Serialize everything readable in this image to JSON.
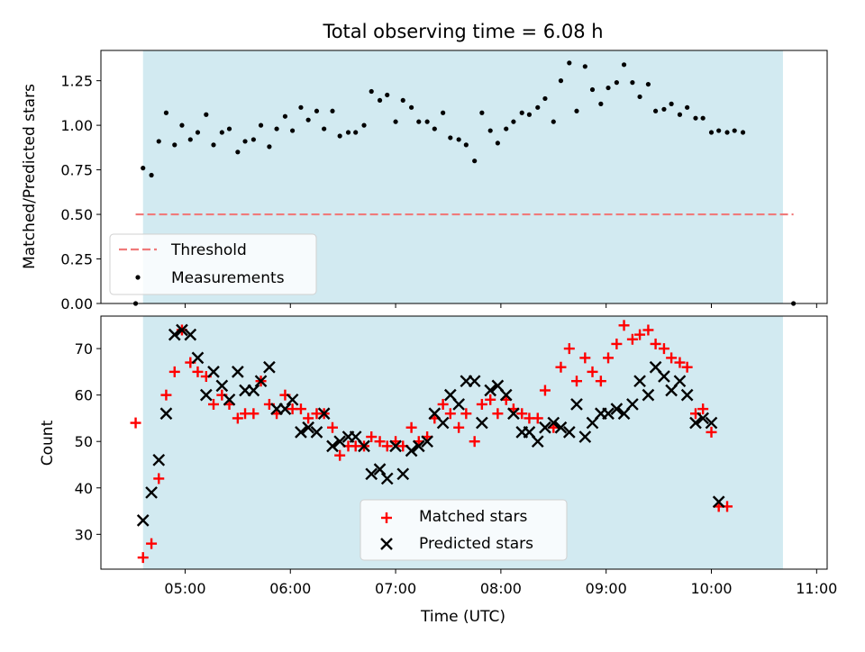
{
  "chart_data": [
    {
      "type": "scatter",
      "title": "Total observing time = 6.08 h",
      "ylabel": "Matched/Predicted stars",
      "xlabel": "",
      "xlim": [
        4.2,
        11.1
      ],
      "ylim": [
        0,
        1.42
      ],
      "yticks": [
        "0.00",
        "0.25",
        "0.50",
        "0.75",
        "1.00",
        "1.25"
      ],
      "ytick_values": [
        0,
        0.25,
        0.5,
        0.75,
        1.0,
        1.25
      ],
      "xtick_values": [
        5,
        6,
        7,
        8,
        9,
        10,
        11
      ],
      "observing_window": [
        4.6,
        10.68
      ],
      "threshold": {
        "name": "Threshold",
        "value": 0.5,
        "x_range": [
          4.53,
          10.78
        ],
        "color": "#f07a7a"
      },
      "series": [
        {
          "name": "Measurements",
          "color": "#000000",
          "points": [
            [
              4.53,
              0.0
            ],
            [
              4.6,
              0.76
            ],
            [
              4.68,
              0.72
            ],
            [
              4.75,
              0.91
            ],
            [
              4.82,
              1.07
            ],
            [
              4.9,
              0.89
            ],
            [
              4.97,
              1.0
            ],
            [
              5.05,
              0.92
            ],
            [
              5.12,
              0.96
            ],
            [
              5.2,
              1.06
            ],
            [
              5.27,
              0.89
            ],
            [
              5.35,
              0.96
            ],
            [
              5.42,
              0.98
            ],
            [
              5.5,
              0.85
            ],
            [
              5.57,
              0.91
            ],
            [
              5.65,
              0.92
            ],
            [
              5.72,
              1.0
            ],
            [
              5.8,
              0.88
            ],
            [
              5.87,
              0.98
            ],
            [
              5.95,
              1.05
            ],
            [
              6.02,
              0.97
            ],
            [
              6.1,
              1.1
            ],
            [
              6.17,
              1.03
            ],
            [
              6.25,
              1.08
            ],
            [
              6.32,
              0.98
            ],
            [
              6.4,
              1.08
            ],
            [
              6.47,
              0.94
            ],
            [
              6.55,
              0.96
            ],
            [
              6.62,
              0.96
            ],
            [
              6.7,
              1.0
            ],
            [
              6.77,
              1.19
            ],
            [
              6.85,
              1.14
            ],
            [
              6.92,
              1.17
            ],
            [
              7.0,
              1.02
            ],
            [
              7.07,
              1.14
            ],
            [
              7.15,
              1.1
            ],
            [
              7.22,
              1.02
            ],
            [
              7.3,
              1.02
            ],
            [
              7.37,
              0.98
            ],
            [
              7.45,
              1.07
            ],
            [
              7.52,
              0.93
            ],
            [
              7.6,
              0.92
            ],
            [
              7.67,
              0.89
            ],
            [
              7.75,
              0.8
            ],
            [
              7.82,
              1.07
            ],
            [
              7.9,
              0.97
            ],
            [
              7.97,
              0.9
            ],
            [
              8.05,
              0.98
            ],
            [
              8.12,
              1.02
            ],
            [
              8.2,
              1.07
            ],
            [
              8.27,
              1.06
            ],
            [
              8.35,
              1.1
            ],
            [
              8.42,
              1.15
            ],
            [
              8.5,
              1.02
            ],
            [
              8.57,
              1.25
            ],
            [
              8.65,
              1.35
            ],
            [
              8.72,
              1.08
            ],
            [
              8.8,
              1.33
            ],
            [
              8.87,
              1.2
            ],
            [
              8.95,
              1.12
            ],
            [
              9.02,
              1.21
            ],
            [
              9.1,
              1.24
            ],
            [
              9.17,
              1.34
            ],
            [
              9.25,
              1.24
            ],
            [
              9.32,
              1.16
            ],
            [
              9.4,
              1.23
            ],
            [
              9.47,
              1.08
            ],
            [
              9.55,
              1.09
            ],
            [
              9.62,
              1.12
            ],
            [
              9.7,
              1.06
            ],
            [
              9.77,
              1.1
            ],
            [
              9.85,
              1.04
            ],
            [
              9.92,
              1.04
            ],
            [
              10.0,
              0.96
            ],
            [
              10.07,
              0.97
            ],
            [
              10.15,
              0.96
            ],
            [
              10.22,
              0.97
            ],
            [
              10.3,
              0.96
            ],
            [
              10.78,
              0.0
            ]
          ]
        }
      ],
      "legend": {
        "placement": "lower-left",
        "entries": [
          "Threshold",
          "Measurements"
        ]
      }
    },
    {
      "type": "scatter",
      "title": "",
      "ylabel": "Count",
      "xlabel": "Time (UTC)",
      "xlim": [
        4.2,
        11.1
      ],
      "ylim": [
        22.5,
        77
      ],
      "yticks": [
        "30",
        "40",
        "50",
        "60",
        "70"
      ],
      "ytick_values": [
        30,
        40,
        50,
        60,
        70
      ],
      "xticks": [
        "05:00",
        "06:00",
        "07:00",
        "08:00",
        "09:00",
        "10:00",
        "11:00"
      ],
      "xtick_values": [
        5,
        6,
        7,
        8,
        9,
        10,
        11
      ],
      "observing_window": [
        4.6,
        10.68
      ],
      "series": [
        {
          "name": "Matched stars",
          "color": "#ff0000",
          "marker": "plus",
          "points": [
            [
              4.53,
              54
            ],
            [
              4.6,
              25
            ],
            [
              4.68,
              28
            ],
            [
              4.75,
              42
            ],
            [
              4.82,
              60
            ],
            [
              4.9,
              65
            ],
            [
              4.97,
              74
            ],
            [
              5.05,
              67
            ],
            [
              5.12,
              65
            ],
            [
              5.2,
              64
            ],
            [
              5.27,
              58
            ],
            [
              5.35,
              60
            ],
            [
              5.42,
              58
            ],
            [
              5.5,
              55
            ],
            [
              5.57,
              56
            ],
            [
              5.65,
              56
            ],
            [
              5.72,
              63
            ],
            [
              5.8,
              58
            ],
            [
              5.87,
              56
            ],
            [
              5.95,
              60
            ],
            [
              6.02,
              57
            ],
            [
              6.1,
              57
            ],
            [
              6.17,
              55
            ],
            [
              6.25,
              56
            ],
            [
              6.32,
              56
            ],
            [
              6.4,
              53
            ],
            [
              6.47,
              47
            ],
            [
              6.55,
              49
            ],
            [
              6.62,
              49
            ],
            [
              6.7,
              49
            ],
            [
              6.77,
              51
            ],
            [
              6.85,
              50
            ],
            [
              6.92,
              49
            ],
            [
              7.0,
              50
            ],
            [
              7.07,
              49
            ],
            [
              7.15,
              53
            ],
            [
              7.22,
              50
            ],
            [
              7.3,
              51
            ],
            [
              7.37,
              55
            ],
            [
              7.45,
              58
            ],
            [
              7.52,
              56
            ],
            [
              7.6,
              53
            ],
            [
              7.67,
              56
            ],
            [
              7.75,
              50
            ],
            [
              7.82,
              58
            ],
            [
              7.9,
              59
            ],
            [
              7.97,
              56
            ],
            [
              8.05,
              59
            ],
            [
              8.12,
              57
            ],
            [
              8.2,
              56
            ],
            [
              8.27,
              55
            ],
            [
              8.35,
              55
            ],
            [
              8.42,
              61
            ],
            [
              8.5,
              53
            ],
            [
              8.57,
              66
            ],
            [
              8.65,
              70
            ],
            [
              8.72,
              63
            ],
            [
              8.8,
              68
            ],
            [
              8.87,
              65
            ],
            [
              8.95,
              63
            ],
            [
              9.02,
              68
            ],
            [
              9.1,
              71
            ],
            [
              9.17,
              75
            ],
            [
              9.25,
              72
            ],
            [
              9.32,
              73
            ],
            [
              9.4,
              74
            ],
            [
              9.47,
              71
            ],
            [
              9.55,
              70
            ],
            [
              9.62,
              68
            ],
            [
              9.7,
              67
            ],
            [
              9.77,
              66
            ],
            [
              9.85,
              56
            ],
            [
              9.92,
              57
            ],
            [
              10.0,
              52
            ],
            [
              10.07,
              36
            ],
            [
              10.15,
              36
            ]
          ]
        },
        {
          "name": "Predicted stars",
          "color": "#000000",
          "marker": "x",
          "points": [
            [
              4.6,
              33
            ],
            [
              4.68,
              39
            ],
            [
              4.75,
              46
            ],
            [
              4.82,
              56
            ],
            [
              4.9,
              73
            ],
            [
              4.97,
              74
            ],
            [
              5.05,
              73
            ],
            [
              5.12,
              68
            ],
            [
              5.2,
              60
            ],
            [
              5.27,
              65
            ],
            [
              5.35,
              62
            ],
            [
              5.42,
              59
            ],
            [
              5.5,
              65
            ],
            [
              5.57,
              61
            ],
            [
              5.65,
              61
            ],
            [
              5.72,
              63
            ],
            [
              5.8,
              66
            ],
            [
              5.87,
              57
            ],
            [
              5.95,
              57
            ],
            [
              6.02,
              59
            ],
            [
              6.1,
              52
            ],
            [
              6.17,
              53
            ],
            [
              6.25,
              52
            ],
            [
              6.32,
              56
            ],
            [
              6.4,
              49
            ],
            [
              6.47,
              50
            ],
            [
              6.55,
              51
            ],
            [
              6.62,
              51
            ],
            [
              6.7,
              49
            ],
            [
              6.77,
              43
            ],
            [
              6.85,
              44
            ],
            [
              6.92,
              42
            ],
            [
              7.0,
              49
            ],
            [
              7.07,
              43
            ],
            [
              7.15,
              48
            ],
            [
              7.22,
              49
            ],
            [
              7.3,
              50
            ],
            [
              7.37,
              56
            ],
            [
              7.45,
              54
            ],
            [
              7.52,
              60
            ],
            [
              7.6,
              58
            ],
            [
              7.67,
              63
            ],
            [
              7.75,
              63
            ],
            [
              7.82,
              54
            ],
            [
              7.9,
              61
            ],
            [
              7.97,
              62
            ],
            [
              8.05,
              60
            ],
            [
              8.12,
              56
            ],
            [
              8.2,
              52
            ],
            [
              8.27,
              52
            ],
            [
              8.35,
              50
            ],
            [
              8.42,
              53
            ],
            [
              8.5,
              54
            ],
            [
              8.57,
              53
            ],
            [
              8.65,
              52
            ],
            [
              8.72,
              58
            ],
            [
              8.8,
              51
            ],
            [
              8.87,
              54
            ],
            [
              8.95,
              56
            ],
            [
              9.02,
              56
            ],
            [
              9.1,
              57
            ],
            [
              9.17,
              56
            ],
            [
              9.25,
              58
            ],
            [
              9.32,
              63
            ],
            [
              9.4,
              60
            ],
            [
              9.47,
              66
            ],
            [
              9.55,
              64
            ],
            [
              9.62,
              61
            ],
            [
              9.7,
              63
            ],
            [
              9.77,
              60
            ],
            [
              9.85,
              54
            ],
            [
              9.92,
              55
            ],
            [
              10.0,
              54
            ],
            [
              10.07,
              37
            ]
          ]
        }
      ],
      "legend": {
        "placement": "lower-center",
        "entries": [
          "Matched stars",
          "Predicted stars"
        ]
      }
    }
  ],
  "colors": {
    "observing_window": "#add8e6",
    "threshold": "#f07a7a",
    "matched": "#ff0000",
    "predicted": "#000000"
  }
}
